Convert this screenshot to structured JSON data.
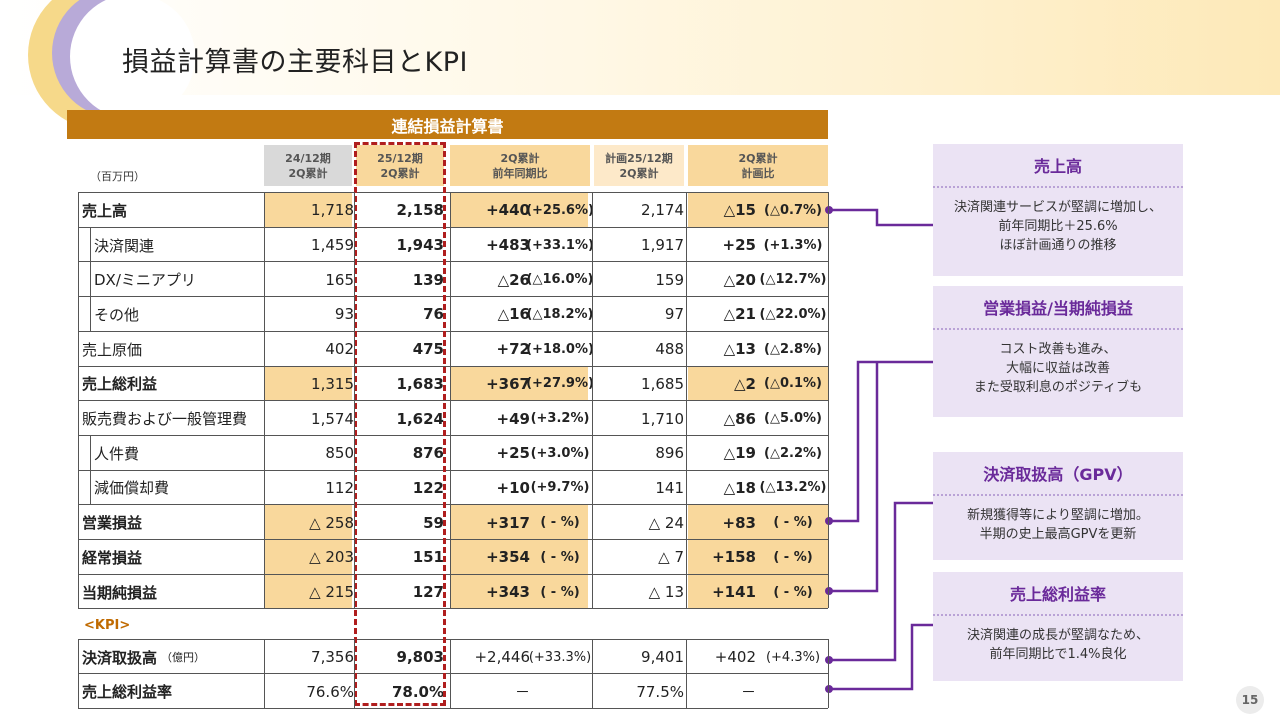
{
  "page": {
    "title": "損益計算書の主要科目とKPI",
    "page_number": "15"
  },
  "table": {
    "header": "連結損益計算書",
    "unit": "（百万円）",
    "columns": [
      "24/12期\n2Q累計",
      "25/12期\n2Q累計",
      "2Q累計\n前年同期比",
      "計画25/12期\n2Q累計",
      "2Q累計\n計画比"
    ],
    "rows": [
      {
        "label": "売上高",
        "indent": false,
        "bold": true,
        "hl": true,
        "c1": "1,718",
        "c2": "2,158",
        "c3": "+440",
        "c3p": "(+25.6%)",
        "c4": "2,174",
        "c5": "△15",
        "c5p": "(△0.7%)"
      },
      {
        "label": "決済関連",
        "indent": true,
        "bold": false,
        "hl": false,
        "c1": "1,459",
        "c2": "1,943",
        "c3": "+483",
        "c3p": "(+33.1%)",
        "c4": "1,917",
        "c5": "+25",
        "c5p": "(+1.3%)"
      },
      {
        "label": "DX/ミニアプリ",
        "indent": true,
        "bold": false,
        "hl": false,
        "c1": "165",
        "c2": "139",
        "c3": "△26",
        "c3p": "(△16.0%)",
        "c4": "159",
        "c5": "△20",
        "c5p": "(△12.7%)"
      },
      {
        "label": "その他",
        "indent": true,
        "bold": false,
        "hl": false,
        "c1": "93",
        "c2": "76",
        "c3": "△16",
        "c3p": "(△18.2%)",
        "c4": "97",
        "c5": "△21",
        "c5p": "(△22.0%)"
      },
      {
        "label": "売上原価",
        "indent": false,
        "bold": false,
        "hl": false,
        "c1": "402",
        "c2": "475",
        "c3": "+72",
        "c3p": "(+18.0%)",
        "c4": "488",
        "c5": "△13",
        "c5p": "(△2.8%)"
      },
      {
        "label": "売上総利益",
        "indent": false,
        "bold": true,
        "hl": true,
        "c1": "1,315",
        "c2": "1,683",
        "c3": "+367",
        "c3p": "(+27.9%)",
        "c4": "1,685",
        "c5": "△2",
        "c5p": "(△0.1%)"
      },
      {
        "label": "販売費および一般管理費",
        "indent": false,
        "bold": false,
        "hl": false,
        "c1": "1,574",
        "c2": "1,624",
        "c3": "+49",
        "c3p": "(+3.2%)",
        "c4": "1,710",
        "c5": "△86",
        "c5p": "(△5.0%)"
      },
      {
        "label": "人件費",
        "indent": true,
        "bold": false,
        "hl": false,
        "c1": "850",
        "c2": "876",
        "c3": "+25",
        "c3p": "(+3.0%)",
        "c4": "896",
        "c5": "△19",
        "c5p": "(△2.2%)"
      },
      {
        "label": "減価償却費",
        "indent": true,
        "bold": false,
        "hl": false,
        "c1": "112",
        "c2": "122",
        "c3": "+10",
        "c3p": "(+9.7%)",
        "c4": "141",
        "c5": "△18",
        "c5p": "(△13.2%)"
      },
      {
        "label": "営業損益",
        "indent": false,
        "bold": true,
        "hl": true,
        "c1": "△ 258",
        "c2": "59",
        "c3": "+317",
        "c3p": "( - %)",
        "c4": "△ 24",
        "c5": "+83",
        "c5p": "( - %)"
      },
      {
        "label": "経常損益",
        "indent": false,
        "bold": true,
        "hl": true,
        "c1": "△ 203",
        "c2": "151",
        "c3": "+354",
        "c3p": "( - %)",
        "c4": "△ 7",
        "c5": "+158",
        "c5p": "( - %)"
      },
      {
        "label": "当期純損益",
        "indent": false,
        "bold": true,
        "hl": true,
        "c1": "△ 215",
        "c2": "127",
        "c3": "+343",
        "c3p": "( - %)",
        "c4": "△ 13",
        "c5": "+141",
        "c5p": "( - %)"
      }
    ],
    "kpi_label": "<KPI>",
    "kpi_rows": [
      {
        "label": "決済取扱高",
        "sub": "（億円）",
        "c1": "7,356",
        "c2": "9,803",
        "c3": "+2,446",
        "c3p": "(+33.3%)",
        "c4": "9,401",
        "c5": "+402",
        "c5p": "(+4.3%)"
      },
      {
        "label": "売上総利益率",
        "sub": "",
        "c1": "76.6%",
        "c2": "78.0%",
        "c3": "－",
        "c3p": "",
        "c4": "77.5%",
        "c5": "－",
        "c5p": ""
      }
    ]
  },
  "panels": [
    {
      "title": "売上高",
      "body": "決済関連サービスが堅調に増加し、\n前年同期比＋25.6%\nほぼ計画通りの推移"
    },
    {
      "title": "営業損益/当期純損益",
      "body": "コスト改善も進み、\n大幅に収益は改善\nまた受取利息のポジティブも"
    },
    {
      "title": "決済取扱高（GPV）",
      "body": "新規獲得等により堅調に増加。\n半期の史上最高GPVを更新"
    },
    {
      "title": "売上総利益率",
      "body": "決済関連の成長が堅調なため、\n前年同期比で1.4%良化"
    }
  ]
}
